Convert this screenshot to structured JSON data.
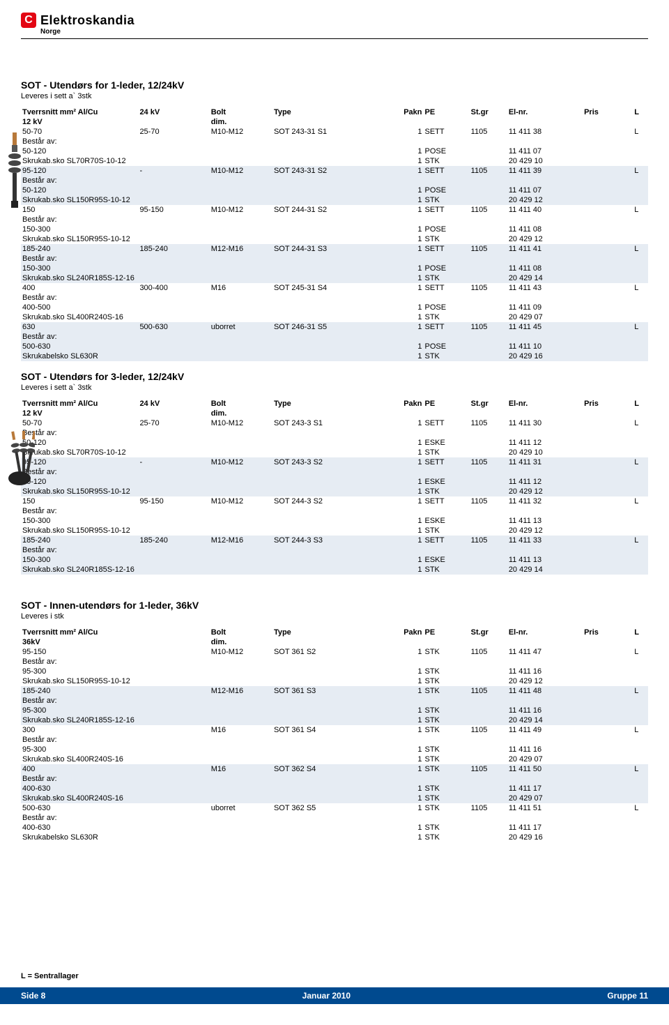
{
  "brand": {
    "name": "Elektroskandia",
    "country": "Norge"
  },
  "colors": {
    "brand_red": "#e30613",
    "footer_blue": "#004a8f",
    "shade": "#e6ecf3"
  },
  "footer": {
    "note": "L = Sentrallager",
    "left": "Side  8",
    "center": "Januar 2010",
    "right": "Gruppe 11"
  },
  "sections": [
    {
      "id": "s1",
      "title": "SOT - Utendørs for 1-leder, 12/24kV",
      "sub": "Leveres i sett a` 3stk",
      "header": {
        "c1a": "Tverrsnitt mm² Al/Cu",
        "c1b": "12 kV",
        "c2": "24 kV",
        "c3a": "Bolt",
        "c3b": "dim.",
        "c4": "Type",
        "c5": "Pakn",
        "c6": "PE",
        "c7": "St.gr",
        "c8": "El-nr.",
        "c9": "Pris",
        "c10": "L"
      },
      "thumb": "single",
      "rows": [
        {
          "shade": false,
          "cells": [
            "50-70",
            "25-70",
            "M10-M12",
            "SOT 243-31 S1",
            "1",
            "SETT",
            "1105",
            "11 411 38",
            "",
            "L"
          ]
        },
        {
          "shade": false,
          "cells": [
            "Består av:",
            "",
            "",
            "",
            "",
            "",
            "",
            "",
            "",
            ""
          ]
        },
        {
          "shade": false,
          "cells": [
            "50-120",
            "",
            "",
            "",
            "1",
            "POSE",
            "",
            "11 411 07",
            "",
            ""
          ]
        },
        {
          "shade": false,
          "cells": [
            "Skrukab.sko SL70R70S-10-12",
            "",
            "",
            "",
            "1",
            "STK",
            "",
            "20 429 10",
            "",
            ""
          ]
        },
        {
          "shade": true,
          "cells": [
            "95-120",
            "-",
            "M10-M12",
            "SOT 243-31 S2",
            "1",
            "SETT",
            "1105",
            "11 411 39",
            "",
            "L"
          ]
        },
        {
          "shade": true,
          "cells": [
            "Består av:",
            "",
            "",
            "",
            "",
            "",
            "",
            "",
            "",
            ""
          ]
        },
        {
          "shade": true,
          "cells": [
            "50-120",
            "",
            "",
            "",
            "1",
            "POSE",
            "",
            "11 411 07",
            "",
            ""
          ]
        },
        {
          "shade": true,
          "cells": [
            "Skrukab.sko SL150R95S-10-12",
            "",
            "",
            "",
            "1",
            "STK",
            "",
            "20 429 12",
            "",
            ""
          ]
        },
        {
          "shade": false,
          "cells": [
            "150",
            "95-150",
            "M10-M12",
            "SOT 244-31 S2",
            "1",
            "SETT",
            "1105",
            "11 411 40",
            "",
            "L"
          ]
        },
        {
          "shade": false,
          "cells": [
            "Består av:",
            "",
            "",
            "",
            "",
            "",
            "",
            "",
            "",
            ""
          ]
        },
        {
          "shade": false,
          "cells": [
            "150-300",
            "",
            "",
            "",
            "1",
            "POSE",
            "",
            "11 411 08",
            "",
            ""
          ]
        },
        {
          "shade": false,
          "cells": [
            "Skrukab.sko SL150R95S-10-12",
            "",
            "",
            "",
            "1",
            "STK",
            "",
            "20 429 12",
            "",
            ""
          ]
        },
        {
          "shade": true,
          "cells": [
            "185-240",
            "185-240",
            "M12-M16",
            "SOT 244-31 S3",
            "1",
            "SETT",
            "1105",
            "11 411 41",
            "",
            "L"
          ]
        },
        {
          "shade": true,
          "cells": [
            "Består av:",
            "",
            "",
            "",
            "",
            "",
            "",
            "",
            "",
            ""
          ]
        },
        {
          "shade": true,
          "cells": [
            "150-300",
            "",
            "",
            "",
            "1",
            "POSE",
            "",
            "11 411 08",
            "",
            ""
          ]
        },
        {
          "shade": true,
          "cells": [
            "Skrukab.sko SL240R185S-12-16",
            "",
            "",
            "",
            "1",
            "STK",
            "",
            "20 429 14",
            "",
            ""
          ]
        },
        {
          "shade": false,
          "cells": [
            "400",
            "300-400",
            "M16",
            "SOT 245-31 S4",
            "1",
            "SETT",
            "1105",
            "11 411 43",
            "",
            "L"
          ]
        },
        {
          "shade": false,
          "cells": [
            "Består av:",
            "",
            "",
            "",
            "",
            "",
            "",
            "",
            "",
            ""
          ]
        },
        {
          "shade": false,
          "cells": [
            "400-500",
            "",
            "",
            "",
            "1",
            "POSE",
            "",
            "11 411 09",
            "",
            ""
          ]
        },
        {
          "shade": false,
          "cells": [
            "Skrukab.sko SL400R240S-16",
            "",
            "",
            "",
            "1",
            "STK",
            "",
            "20 429 07",
            "",
            ""
          ]
        },
        {
          "shade": true,
          "cells": [
            "630",
            "500-630",
            "uborret",
            "SOT 246-31 S5",
            "1",
            "SETT",
            "1105",
            "11 411 45",
            "",
            "L"
          ]
        },
        {
          "shade": true,
          "cells": [
            "Består av:",
            "",
            "",
            "",
            "",
            "",
            "",
            "",
            "",
            ""
          ]
        },
        {
          "shade": true,
          "cells": [
            "500-630",
            "",
            "",
            "",
            "1",
            "POSE",
            "",
            "11 411 10",
            "",
            ""
          ]
        },
        {
          "shade": true,
          "cells": [
            "Skrukabelsko SL630R",
            "",
            "",
            "",
            "1",
            "STK",
            "",
            "20 429 16",
            "",
            ""
          ]
        }
      ]
    },
    {
      "id": "s2",
      "title": "SOT - Utendørs for 3-leder, 12/24kV",
      "sub": "Leveres i sett a` 3stk",
      "header": {
        "c1a": "Tverrsnitt mm² Al/Cu",
        "c1b": "12 kV",
        "c2": "24 kV",
        "c3a": "Bolt",
        "c3b": "dim.",
        "c4": "Type",
        "c5": "Pakn",
        "c6": "PE",
        "c7": "St.gr",
        "c8": "El-nr.",
        "c9": "Pris",
        "c10": "L"
      },
      "thumb": "triple",
      "rows": [
        {
          "shade": false,
          "cells": [
            "50-70",
            "25-70",
            "M10-M12",
            "SOT 243-3 S1",
            "1",
            "SETT",
            "1105",
            "11 411 30",
            "",
            "L"
          ]
        },
        {
          "shade": false,
          "cells": [
            "Består av:",
            "",
            "",
            "",
            "",
            "",
            "",
            "",
            "",
            ""
          ]
        },
        {
          "shade": false,
          "cells": [
            "50-120",
            "",
            "",
            "",
            "1",
            "ESKE",
            "",
            "11 411 12",
            "",
            ""
          ]
        },
        {
          "shade": false,
          "cells": [
            "Skrukab.sko SL70R70S-10-12",
            "",
            "",
            "",
            "1",
            "STK",
            "",
            "20 429 10",
            "",
            ""
          ]
        },
        {
          "shade": true,
          "cells": [
            "95-120",
            "-",
            "M10-M12",
            "SOT 243-3 S2",
            "1",
            "SETT",
            "1105",
            "11 411 31",
            "",
            "L"
          ]
        },
        {
          "shade": true,
          "cells": [
            "Består av:",
            "",
            "",
            "",
            "",
            "",
            "",
            "",
            "",
            ""
          ]
        },
        {
          "shade": true,
          "cells": [
            "50-120",
            "",
            "",
            "",
            "1",
            "ESKE",
            "",
            "11 411 12",
            "",
            ""
          ]
        },
        {
          "shade": true,
          "cells": [
            "Skrukab.sko SL150R95S-10-12",
            "",
            "",
            "",
            "1",
            "STK",
            "",
            "20 429 12",
            "",
            ""
          ]
        },
        {
          "shade": false,
          "cells": [
            "150",
            "95-150",
            "M10-M12",
            "SOT 244-3 S2",
            "1",
            "SETT",
            "1105",
            "11 411 32",
            "",
            "L"
          ]
        },
        {
          "shade": false,
          "cells": [
            "Består av:",
            "",
            "",
            "",
            "",
            "",
            "",
            "",
            "",
            ""
          ]
        },
        {
          "shade": false,
          "cells": [
            "150-300",
            "",
            "",
            "",
            "1",
            "ESKE",
            "",
            "11 411 13",
            "",
            ""
          ]
        },
        {
          "shade": false,
          "cells": [
            "Skrukab.sko SL150R95S-10-12",
            "",
            "",
            "",
            "1",
            "STK",
            "",
            "20 429 12",
            "",
            ""
          ]
        },
        {
          "shade": true,
          "cells": [
            "185-240",
            "185-240",
            "M12-M16",
            "SOT 244-3 S3",
            "1",
            "SETT",
            "1105",
            "11 411 33",
            "",
            "L"
          ]
        },
        {
          "shade": true,
          "cells": [
            "Består av:",
            "",
            "",
            "",
            "",
            "",
            "",
            "",
            "",
            ""
          ]
        },
        {
          "shade": true,
          "cells": [
            "150-300",
            "",
            "",
            "",
            "1",
            "ESKE",
            "",
            "11 411 13",
            "",
            ""
          ]
        },
        {
          "shade": true,
          "cells": [
            "Skrukab.sko SL240R185S-12-16",
            "",
            "",
            "",
            "1",
            "STK",
            "",
            "20 429 14",
            "",
            ""
          ]
        }
      ]
    },
    {
      "id": "s3",
      "title": "SOT - Innen-utendørs for 1-leder, 36kV",
      "sub": "Leveres i stk",
      "header": {
        "c1a": "Tverrsnitt mm² Al/Cu",
        "c1b": "36kV",
        "c2": "",
        "c3a": "Bolt",
        "c3b": "dim.",
        "c4": "Type",
        "c5": "Pakn",
        "c6": "PE",
        "c7": "St.gr",
        "c8": "El-nr.",
        "c9": "Pris",
        "c10": "L"
      },
      "thumb": null,
      "rows": [
        {
          "shade": false,
          "cells": [
            "95-150",
            "",
            "M10-M12",
            "SOT 361 S2",
            "1",
            "STK",
            "1105",
            "11 411 47",
            "",
            "L"
          ]
        },
        {
          "shade": false,
          "cells": [
            "Består av:",
            "",
            "",
            "",
            "",
            "",
            "",
            "",
            "",
            ""
          ]
        },
        {
          "shade": false,
          "cells": [
            "95-300",
            "",
            "",
            "",
            "1",
            "STK",
            "",
            "11 411 16",
            "",
            ""
          ]
        },
        {
          "shade": false,
          "cells": [
            "Skrukab.sko SL150R95S-10-12",
            "",
            "",
            "",
            "1",
            "STK",
            "",
            "20 429 12",
            "",
            ""
          ]
        },
        {
          "shade": true,
          "cells": [
            "185-240",
            "",
            "M12-M16",
            "SOT 361 S3",
            "1",
            "STK",
            "1105",
            "11 411 48",
            "",
            "L"
          ]
        },
        {
          "shade": true,
          "cells": [
            "Består av:",
            "",
            "",
            "",
            "",
            "",
            "",
            "",
            "",
            ""
          ]
        },
        {
          "shade": true,
          "cells": [
            "95-300",
            "",
            "",
            "",
            "1",
            "STK",
            "",
            "11 411 16",
            "",
            ""
          ]
        },
        {
          "shade": true,
          "cells": [
            "Skrukab.sko SL240R185S-12-16",
            "",
            "",
            "",
            "1",
            "STK",
            "",
            "20 429 14",
            "",
            ""
          ]
        },
        {
          "shade": false,
          "cells": [
            "300",
            "",
            "M16",
            "SOT 361 S4",
            "1",
            "STK",
            "1105",
            "11 411 49",
            "",
            "L"
          ]
        },
        {
          "shade": false,
          "cells": [
            "Består av:",
            "",
            "",
            "",
            "",
            "",
            "",
            "",
            "",
            ""
          ]
        },
        {
          "shade": false,
          "cells": [
            "95-300",
            "",
            "",
            "",
            "1",
            "STK",
            "",
            "11 411 16",
            "",
            ""
          ]
        },
        {
          "shade": false,
          "cells": [
            "Skrukab.sko SL400R240S-16",
            "",
            "",
            "",
            "1",
            "STK",
            "",
            "20 429 07",
            "",
            ""
          ]
        },
        {
          "shade": true,
          "cells": [
            "400",
            "",
            "M16",
            "SOT 362 S4",
            "1",
            "STK",
            "1105",
            "11 411 50",
            "",
            "L"
          ]
        },
        {
          "shade": true,
          "cells": [
            "Består av:",
            "",
            "",
            "",
            "",
            "",
            "",
            "",
            "",
            ""
          ]
        },
        {
          "shade": true,
          "cells": [
            "400-630",
            "",
            "",
            "",
            "1",
            "STK",
            "",
            "11 411 17",
            "",
            ""
          ]
        },
        {
          "shade": true,
          "cells": [
            "Skrukab.sko SL400R240S-16",
            "",
            "",
            "",
            "1",
            "STK",
            "",
            "20 429 07",
            "",
            ""
          ]
        },
        {
          "shade": false,
          "cells": [
            "500-630",
            "",
            "uborret",
            "SOT 362 S5",
            "1",
            "STK",
            "1105",
            "11 411 51",
            "",
            "L"
          ]
        },
        {
          "shade": false,
          "cells": [
            "Består av:",
            "",
            "",
            "",
            "",
            "",
            "",
            "",
            "",
            ""
          ]
        },
        {
          "shade": false,
          "cells": [
            "400-630",
            "",
            "",
            "",
            "1",
            "STK",
            "",
            "11 411 17",
            "",
            ""
          ]
        },
        {
          "shade": false,
          "cells": [
            "Skrukabelsko SL630R",
            "",
            "",
            "",
            "1",
            "STK",
            "",
            "20 429 16",
            "",
            ""
          ]
        }
      ]
    }
  ]
}
